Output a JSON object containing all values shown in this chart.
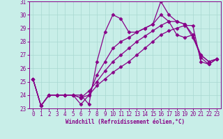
{
  "xlabel": "Windchill (Refroidissement éolien,°C)",
  "background_color": "#c8eee8",
  "line_color": "#880088",
  "xlim": [
    -0.5,
    23.5
  ],
  "ylim": [
    23,
    31
  ],
  "yticks": [
    23,
    24,
    25,
    26,
    27,
    28,
    29,
    30,
    31
  ],
  "xticks": [
    0,
    1,
    2,
    3,
    4,
    5,
    6,
    7,
    8,
    9,
    10,
    11,
    12,
    13,
    14,
    15,
    16,
    17,
    18,
    19,
    20,
    21,
    22,
    23
  ],
  "series": [
    [
      25.2,
      23.2,
      24.0,
      24.0,
      24.0,
      24.0,
      24.0,
      23.3,
      26.5,
      28.7,
      30.0,
      29.7,
      28.7,
      28.7,
      29.0,
      29.3,
      31.0,
      30.0,
      29.5,
      29.3,
      28.3,
      27.0,
      26.5,
      26.7
    ],
    [
      25.2,
      23.2,
      24.0,
      24.0,
      24.0,
      24.0,
      23.3,
      24.0,
      25.5,
      26.5,
      27.5,
      28.0,
      28.3,
      28.7,
      29.0,
      29.3,
      30.0,
      29.5,
      28.5,
      28.3,
      28.5,
      27.0,
      26.5,
      26.7
    ],
    [
      25.2,
      23.2,
      24.0,
      24.0,
      24.0,
      24.0,
      23.8,
      24.3,
      25.0,
      25.8,
      26.5,
      27.0,
      27.5,
      28.0,
      28.4,
      28.8,
      29.2,
      29.5,
      29.5,
      29.3,
      28.5,
      26.8,
      26.3,
      26.7
    ],
    [
      25.2,
      23.2,
      24.0,
      24.0,
      24.0,
      24.0,
      23.8,
      24.0,
      24.7,
      25.2,
      25.7,
      26.1,
      26.5,
      27.0,
      27.5,
      28.0,
      28.5,
      28.8,
      29.0,
      29.2,
      29.2,
      26.5,
      26.3,
      26.7
    ]
  ],
  "grid_color": "#a8d8d0",
  "marker": "D",
  "markersize": 2.5,
  "linewidth": 0.9
}
